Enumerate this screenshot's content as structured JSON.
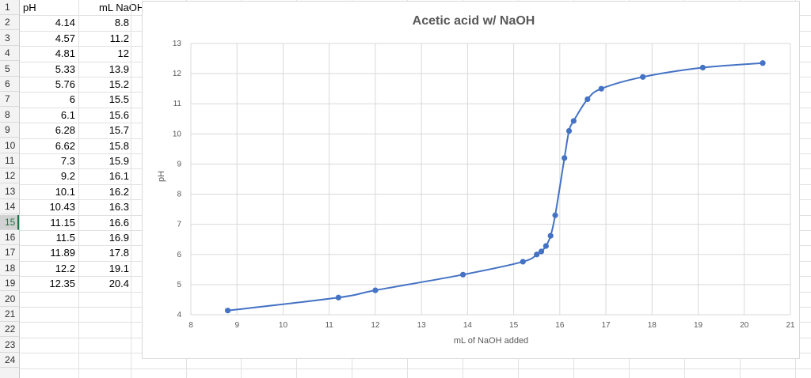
{
  "sheet": {
    "row_numbers": [
      "1",
      "2",
      "3",
      "4",
      "5",
      "6",
      "7",
      "8",
      "9",
      "10",
      "11",
      "12",
      "13",
      "14",
      "15",
      "16",
      "17",
      "18",
      "19",
      "20",
      "21",
      "22",
      "23",
      "24"
    ],
    "selected_row": "15",
    "headers": {
      "col_a": "pH",
      "col_b": "mL NaOH"
    },
    "rows": [
      {
        "ph": "4.14",
        "ml": "8.8"
      },
      {
        "ph": "4.57",
        "ml": "11.2"
      },
      {
        "ph": "4.81",
        "ml": "12"
      },
      {
        "ph": "5.33",
        "ml": "13.9"
      },
      {
        "ph": "5.76",
        "ml": "15.2"
      },
      {
        "ph": "6",
        "ml": "15.5"
      },
      {
        "ph": "6.1",
        "ml": "15.6"
      },
      {
        "ph": "6.28",
        "ml": "15.7"
      },
      {
        "ph": "6.62",
        "ml": "15.8"
      },
      {
        "ph": "7.3",
        "ml": "15.9"
      },
      {
        "ph": "9.2",
        "ml": "16.1"
      },
      {
        "ph": "10.1",
        "ml": "16.2"
      },
      {
        "ph": "10.43",
        "ml": "16.3"
      },
      {
        "ph": "11.15",
        "ml": "16.6"
      },
      {
        "ph": "11.5",
        "ml": "16.9"
      },
      {
        "ph": "11.89",
        "ml": "17.8"
      },
      {
        "ph": "12.2",
        "ml": "19.1"
      },
      {
        "ph": "12.35",
        "ml": "20.4"
      }
    ]
  },
  "chart_data": {
    "type": "scatter",
    "title": "Acetic acid w/ NaOH",
    "xlabel": "mL of NaOH added",
    "ylabel": "pH",
    "xlim": [
      8,
      21
    ],
    "ylim": [
      4,
      13
    ],
    "x_ticks": [
      "8",
      "9",
      "10",
      "11",
      "12",
      "13",
      "14",
      "15",
      "16",
      "17",
      "18",
      "19",
      "20",
      "21"
    ],
    "y_ticks": [
      "4",
      "5",
      "6",
      "7",
      "8",
      "9",
      "10",
      "11",
      "12",
      "13"
    ],
    "grid": true,
    "smooth_line": true,
    "series_color": "#4472c4",
    "series": [
      {
        "x": [
          8.8,
          11.2,
          12,
          13.9,
          15.2,
          15.5,
          15.6,
          15.7,
          15.8,
          15.9,
          16.1,
          16.2,
          16.3,
          16.6,
          16.9,
          17.8,
          19.1,
          20.4
        ],
        "y": [
          4.14,
          4.57,
          4.81,
          5.33,
          5.76,
          6,
          6.1,
          6.28,
          6.62,
          7.3,
          9.2,
          10.1,
          10.43,
          11.15,
          11.5,
          11.89,
          12.2,
          12.35
        ]
      }
    ]
  }
}
